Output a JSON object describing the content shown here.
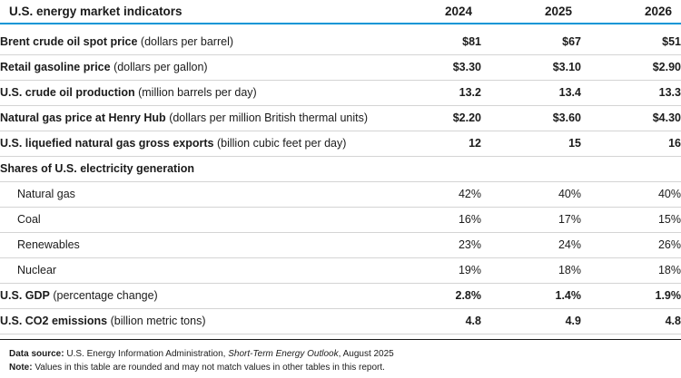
{
  "table": {
    "title": "U.S. energy market indicators",
    "years": [
      "2024",
      "2025",
      "2026"
    ],
    "rows": [
      {
        "name": "Brent crude oil spot price",
        "unit": "(dollars per barrel)",
        "values": [
          "$81",
          "$67",
          "$51"
        ]
      },
      {
        "name": "Retail gasoline price",
        "unit": "(dollars per gallon)",
        "values": [
          "$3.30",
          "$3.10",
          "$2.90"
        ]
      },
      {
        "name": "U.S. crude oil production",
        "unit": "(million barrels per day)",
        "values": [
          "13.2",
          "13.4",
          "13.3"
        ]
      },
      {
        "name": "Natural gas price at Henry Hub",
        "unit": "(dollars per million British thermal units)",
        "values": [
          "$2.20",
          "$3.60",
          "$4.30"
        ]
      },
      {
        "name": "U.S. liquefied natural gas gross exports",
        "unit": "(billion cubic feet per day)",
        "values": [
          "12",
          "15",
          "16"
        ]
      }
    ],
    "section": {
      "title": "Shares of U.S. electricity generation",
      "rows": [
        {
          "name": "Natural gas",
          "values": [
            "42%",
            "40%",
            "40%"
          ]
        },
        {
          "name": "Coal",
          "values": [
            "16%",
            "17%",
            "15%"
          ]
        },
        {
          "name": "Renewables",
          "values": [
            "23%",
            "24%",
            "26%"
          ]
        },
        {
          "name": "Nuclear",
          "values": [
            "19%",
            "18%",
            "18%"
          ]
        }
      ]
    },
    "rows_after": [
      {
        "name": "U.S. GDP",
        "unit": "(percentage change)",
        "values": [
          "2.8%",
          "1.4%",
          "1.9%"
        ]
      },
      {
        "name": "U.S. CO2 emissions",
        "unit": "(billion metric tons)",
        "values": [
          "4.8",
          "4.9",
          "4.8"
        ]
      }
    ]
  },
  "footer": {
    "source_label": "Data source:",
    "source_text": "U.S. Energy Information Administration,",
    "source_title": "Short-Term Energy Outlook",
    "source_date": ", August 2025",
    "note_label": "Note:",
    "note_text": "Values in this table are rounded and may not match values in other tables in this report."
  },
  "colors": {
    "header_rule": "#0a96d6",
    "row_rule": "#d4d4d4",
    "text": "#1b1b1b"
  }
}
